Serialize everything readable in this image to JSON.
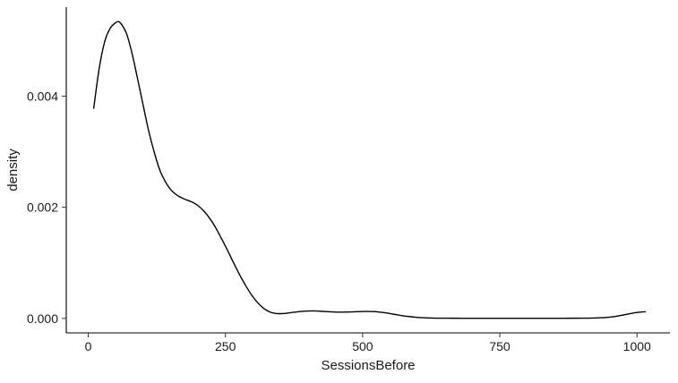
{
  "chart_data": {
    "type": "line",
    "title": "",
    "xlabel": "SessionsBefore",
    "ylabel": "density",
    "xlim": [
      -40,
      1060
    ],
    "ylim": [
      -0.00026,
      0.0056
    ],
    "x_ticks": [
      {
        "value": 0,
        "label": "0"
      },
      {
        "value": 250,
        "label": "250"
      },
      {
        "value": 500,
        "label": "500"
      },
      {
        "value": 750,
        "label": "750"
      },
      {
        "value": 1000,
        "label": "1000"
      }
    ],
    "y_ticks": [
      {
        "value": 0.0,
        "label": "0.000"
      },
      {
        "value": 0.002,
        "label": "0.002"
      },
      {
        "value": 0.004,
        "label": "0.004"
      }
    ],
    "grid": false,
    "legend": "none",
    "line_color": "#000000",
    "series": [
      {
        "x": [
          10,
          20,
          30,
          40,
          50,
          55,
          60,
          70,
          80,
          90,
          100,
          110,
          120,
          130,
          140,
          150,
          160,
          170,
          180,
          190,
          200,
          210,
          220,
          230,
          240,
          250,
          260,
          270,
          280,
          290,
          300,
          310,
          320,
          330,
          340,
          350,
          360,
          370,
          380,
          390,
          400,
          410,
          420,
          430,
          440,
          450,
          460,
          470,
          480,
          490,
          500,
          510,
          520,
          530,
          540,
          550,
          560,
          570,
          580,
          600,
          620,
          650,
          700,
          750,
          800,
          850,
          900,
          920,
          940,
          950,
          960,
          970,
          980,
          990,
          1000,
          1010,
          1015
        ],
        "y": [
          0.00378,
          0.0045,
          0.00498,
          0.00522,
          0.00532,
          0.00534,
          0.0053,
          0.00512,
          0.00476,
          0.00431,
          0.00384,
          0.00338,
          0.003,
          0.00268,
          0.00247,
          0.00232,
          0.00223,
          0.00217,
          0.00213,
          0.00209,
          0.00203,
          0.00194,
          0.00182,
          0.00167,
          0.00149,
          0.0013,
          0.0011,
          0.0009,
          0.00071,
          0.00054,
          0.00039,
          0.00027,
          0.00018,
          0.00012,
          9.2e-05,
          8.6e-05,
          9.2e-05,
          0.000105,
          0.000118,
          0.000127,
          0.000133,
          0.000135,
          0.000132,
          0.000126,
          0.00012,
          0.000116,
          0.000114,
          0.000115,
          0.000118,
          0.000122,
          0.000125,
          0.000126,
          0.000123,
          0.000116,
          0.000104,
          8.8e-05,
          7e-05,
          5.3e-05,
          3.8e-05,
          1.9e-05,
          9e-06,
          4e-06,
          3e-06,
          3e-06,
          3e-06,
          3e-06,
          4e-06,
          7e-06,
          1.5e-05,
          2.3e-05,
          3.5e-05,
          5.2e-05,
          7.2e-05,
          9.2e-05,
          0.000108,
          0.000118,
          0.00012
        ]
      }
    ]
  }
}
